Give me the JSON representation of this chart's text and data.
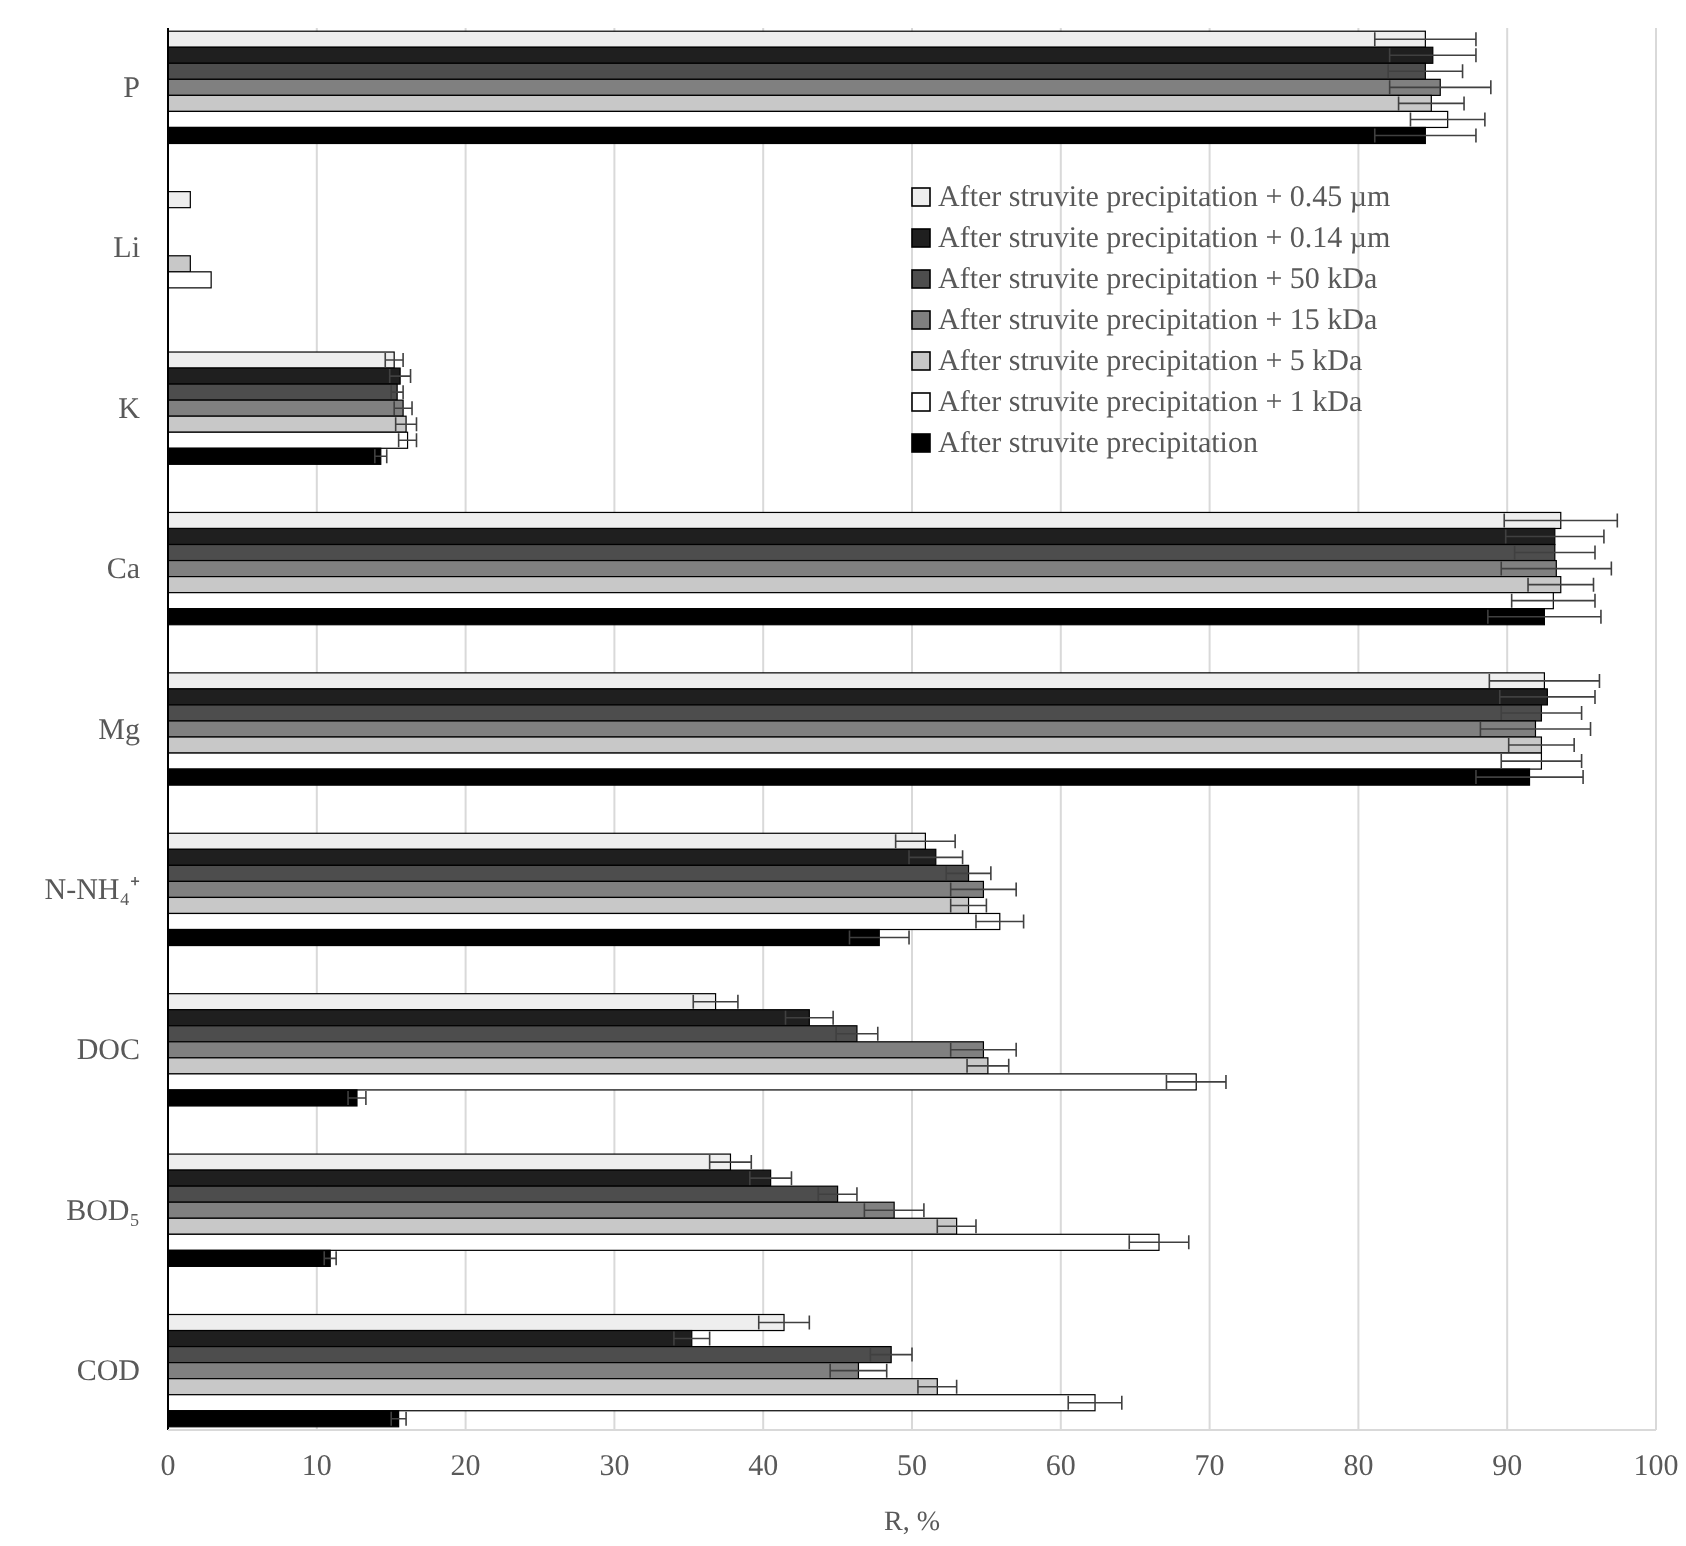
{
  "chart_data": {
    "type": "bar",
    "orientation": "horizontal",
    "xlabel": "R, %",
    "categories": [
      "P",
      "Li",
      "K",
      "Ca",
      "Mg",
      "N-NH₄⁺",
      "DOC",
      "BOD₅",
      "COD"
    ],
    "xlim": [
      0,
      100
    ],
    "xticks": [
      0,
      10,
      20,
      30,
      40,
      50,
      60,
      70,
      80,
      90,
      100
    ],
    "grid": "x",
    "legend": "top right",
    "series": [
      {
        "name": "After struvite precipitation + 0.45 µm",
        "color": "#eeeeee",
        "values": [
          84.5,
          1.5,
          15.2,
          93.6,
          92.5,
          50.9,
          36.8,
          37.8,
          41.4
        ],
        "errors": [
          3.4,
          null,
          0.6,
          3.8,
          3.7,
          2.0,
          1.5,
          1.4,
          1.7
        ]
      },
      {
        "name": "After struvite precipitation + 0.14 µm",
        "color": "#1f1f1f",
        "values": [
          85.0,
          0,
          15.6,
          93.2,
          92.7,
          51.6,
          43.1,
          40.5,
          35.2
        ],
        "errors": [
          2.9,
          null,
          0.7,
          3.3,
          3.2,
          1.8,
          1.6,
          1.4,
          1.2
        ]
      },
      {
        "name": "After struvite precipitation + 50 kDa",
        "color": "#4d4d4d",
        "values": [
          84.5,
          0,
          15.4,
          93.2,
          92.3,
          53.8,
          46.3,
          45.0,
          48.6
        ],
        "errors": [
          2.5,
          null,
          0.4,
          2.7,
          2.7,
          1.5,
          1.4,
          1.3,
          1.4
        ]
      },
      {
        "name": "After struvite precipitation + 15 kDa",
        "color": "#808080",
        "values": [
          85.5,
          0,
          15.8,
          93.3,
          91.9,
          54.8,
          54.8,
          48.8,
          46.4
        ],
        "errors": [
          3.4,
          null,
          0.6,
          3.7,
          3.7,
          2.2,
          2.2,
          2.0,
          1.9
        ]
      },
      {
        "name": "After struvite precipitation + 5 kDa",
        "color": "#c8c8c8",
        "values": [
          84.9,
          1.5,
          16.0,
          93.6,
          92.3,
          53.8,
          55.1,
          53.0,
          51.7
        ],
        "errors": [
          2.2,
          null,
          0.7,
          2.2,
          2.2,
          1.2,
          1.4,
          1.3,
          1.3
        ]
      },
      {
        "name": "After struvite precipitation + 1 kDa",
        "color": "#ffffff",
        "values": [
          86.0,
          2.9,
          16.1,
          93.1,
          92.3,
          55.9,
          69.1,
          66.6,
          62.3
        ],
        "errors": [
          2.5,
          null,
          0.6,
          2.8,
          2.7,
          1.6,
          2.0,
          2.0,
          1.8
        ]
      },
      {
        "name": "After struvite precipitation",
        "color": "#000000",
        "values": [
          84.5,
          0,
          14.3,
          92.5,
          91.5,
          47.8,
          12.7,
          10.9,
          15.5
        ],
        "errors": [
          3.4,
          null,
          0.4,
          3.8,
          3.6,
          2.0,
          0.6,
          0.4,
          0.5
        ]
      }
    ]
  }
}
